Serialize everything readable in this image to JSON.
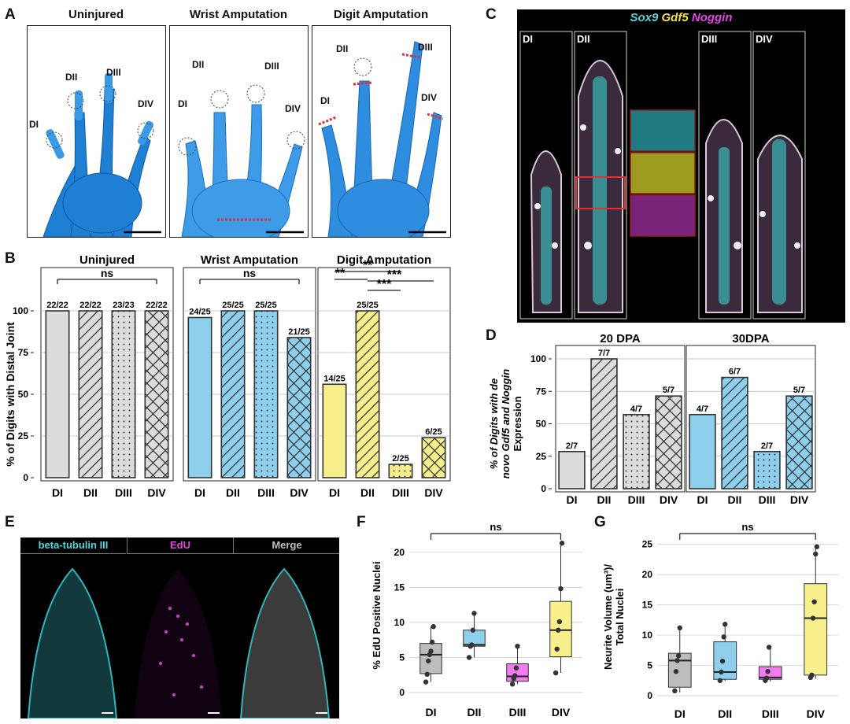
{
  "panels": {
    "A": {
      "letter": "A",
      "titles": [
        "Uninjured",
        "Wrist Amputation",
        "Digit Amputation"
      ],
      "digit_labels": [
        "DI",
        "DII",
        "DIII",
        "DIV"
      ]
    },
    "B": {
      "letter": "B"
    },
    "C": {
      "letter": "C",
      "markers": [
        "Sox9",
        "Gdf5",
        "Noggin"
      ],
      "digit_labels": [
        "DI",
        "DII",
        "DIII",
        "DIV"
      ]
    },
    "D": {
      "letter": "D"
    },
    "E": {
      "letter": "E",
      "headers": [
        "beta-tubulin III",
        "EdU",
        "Merge"
      ]
    },
    "F": {
      "letter": "F"
    },
    "G": {
      "letter": "G"
    }
  },
  "colors": {
    "gray": "#dcdcdc",
    "blue": "#8ecfee",
    "yellow": "#f7ef8c",
    "magenta": "#f27bf0",
    "ink": "#222222"
  },
  "chart_data": [
    {
      "id": "B",
      "type": "bar",
      "ylabel": "% of Digits with Distal Joint",
      "ylim": [
        0,
        100
      ],
      "yticks": [
        0,
        25,
        50,
        75,
        100
      ],
      "grid": true,
      "categories": [
        "DI",
        "DII",
        "DIII",
        "DIV"
      ],
      "groups": [
        {
          "title": "Uninjured",
          "color": "gray",
          "values": [
            100,
            100,
            100,
            100
          ],
          "labels": [
            "22/22",
            "22/22",
            "23/23",
            "22/22"
          ],
          "sig": [
            {
              "from": 0,
              "to": 3,
              "text": "ns"
            }
          ]
        },
        {
          "title": "Wrist Amputation",
          "color": "blue",
          "values": [
            96,
            100,
            100,
            84
          ],
          "labels": [
            "24/25",
            "25/25",
            "25/25",
            "21/25"
          ],
          "sig": [
            {
              "from": 0,
              "to": 3,
              "text": "ns"
            }
          ]
        },
        {
          "title": "Digit Amputation",
          "color": "yellow",
          "values": [
            56,
            100,
            8,
            24
          ],
          "labels": [
            "14/25",
            "25/25",
            "2/25",
            "6/25"
          ],
          "sig": [
            {
              "from": 0,
              "to": 1,
              "text": "**"
            },
            {
              "from": 0,
              "to": 2,
              "text": "**"
            },
            {
              "from": 1,
              "to": 3,
              "text": "***"
            },
            {
              "from": 1,
              "to": 2,
              "text": "***"
            }
          ]
        }
      ],
      "patterns": [
        "solid",
        "diagonal",
        "dots",
        "crosshatch"
      ]
    },
    {
      "id": "D",
      "type": "bar",
      "ylabel_lines": [
        "% of Digits with de",
        "novo Gdf5 and Noggin",
        "Expression"
      ],
      "ylim": [
        0,
        100
      ],
      "yticks": [
        0,
        25,
        50,
        75,
        100
      ],
      "grid": true,
      "categories": [
        "DI",
        "DII",
        "DIII",
        "DIV"
      ],
      "groups": [
        {
          "title": "20 DPA",
          "color": "gray",
          "values": [
            28.6,
            100,
            57.1,
            71.4
          ],
          "labels": [
            "2/7",
            "7/7",
            "4/7",
            "5/7"
          ]
        },
        {
          "title": "30DPA",
          "color": "blue",
          "values": [
            57.1,
            85.7,
            28.6,
            71.4
          ],
          "labels": [
            "4/7",
            "6/7",
            "2/7",
            "5/7"
          ]
        }
      ],
      "patterns": [
        "solid",
        "diagonal",
        "dots",
        "crosshatch"
      ]
    },
    {
      "id": "F",
      "type": "box",
      "ylabel": "% EdU Positive Nuclei",
      "ylim": [
        0,
        22
      ],
      "yticks": [
        0,
        5,
        10,
        15,
        20
      ],
      "categories": [
        "DI",
        "DII",
        "DIII",
        "DIV"
      ],
      "colors": [
        "#bdbdbd",
        "#8ecfee",
        "#f27bf0",
        "#f7ef8c"
      ],
      "boxes": [
        {
          "min": 1.5,
          "q1": 2.7,
          "median": 5.4,
          "q3": 7.0,
          "max": 9.4,
          "points": [
            1.5,
            2.6,
            4.5,
            5.4,
            5.9,
            7.2,
            9.4
          ]
        },
        {
          "min": 5.0,
          "q1": 6.6,
          "median": 6.8,
          "q3": 8.9,
          "max": 11.3,
          "points": [
            5.0,
            6.6,
            6.8,
            8.9,
            11.3
          ]
        },
        {
          "min": 1.2,
          "q1": 1.6,
          "median": 2.3,
          "q3": 4.1,
          "max": 6.6,
          "points": [
            1.2,
            2.0,
            2.4,
            3.5,
            6.6
          ]
        },
        {
          "min": 2.8,
          "q1": 5.1,
          "median": 8.9,
          "q3": 13.0,
          "max": 21.3,
          "points": [
            2.8,
            6.2,
            8.9,
            10.1,
            14.8,
            21.3
          ]
        }
      ],
      "sig": {
        "from": 0,
        "to": 3,
        "text": "ns"
      }
    },
    {
      "id": "G",
      "type": "box",
      "ylabel_lines": [
        "Neurite Volume (um³)/",
        "Total Nuclei"
      ],
      "ylim": [
        0,
        26
      ],
      "yticks": [
        0,
        5,
        10,
        15,
        20,
        25
      ],
      "categories": [
        "DI",
        "DII",
        "DIII",
        "DIV"
      ],
      "colors": [
        "#bdbdbd",
        "#8ecfee",
        "#f27bf0",
        "#f7ef8c"
      ],
      "boxes": [
        {
          "min": 0.5,
          "q1": 1.4,
          "median": 5.8,
          "q3": 7.0,
          "max": 11.2,
          "points": [
            0.8,
            4.0,
            5.8,
            6.6,
            11.2
          ]
        },
        {
          "min": 2.4,
          "q1": 2.7,
          "median": 3.9,
          "q3": 8.9,
          "max": 11.8,
          "points": [
            2.5,
            3.9,
            5.7,
            9.7,
            11.8
          ]
        },
        {
          "min": 2.3,
          "q1": 2.7,
          "median": 3.0,
          "q3": 4.8,
          "max": 8.0,
          "points": [
            2.5,
            2.9,
            4.0,
            8.0
          ]
        },
        {
          "min": 2.8,
          "q1": 3.4,
          "median": 12.8,
          "q3": 18.5,
          "max": 24.6,
          "points": [
            3.0,
            3.4,
            12.8,
            15.5,
            23.4,
            24.6
          ]
        }
      ],
      "sig": {
        "from": 0,
        "to": 3,
        "text": "ns"
      }
    }
  ]
}
